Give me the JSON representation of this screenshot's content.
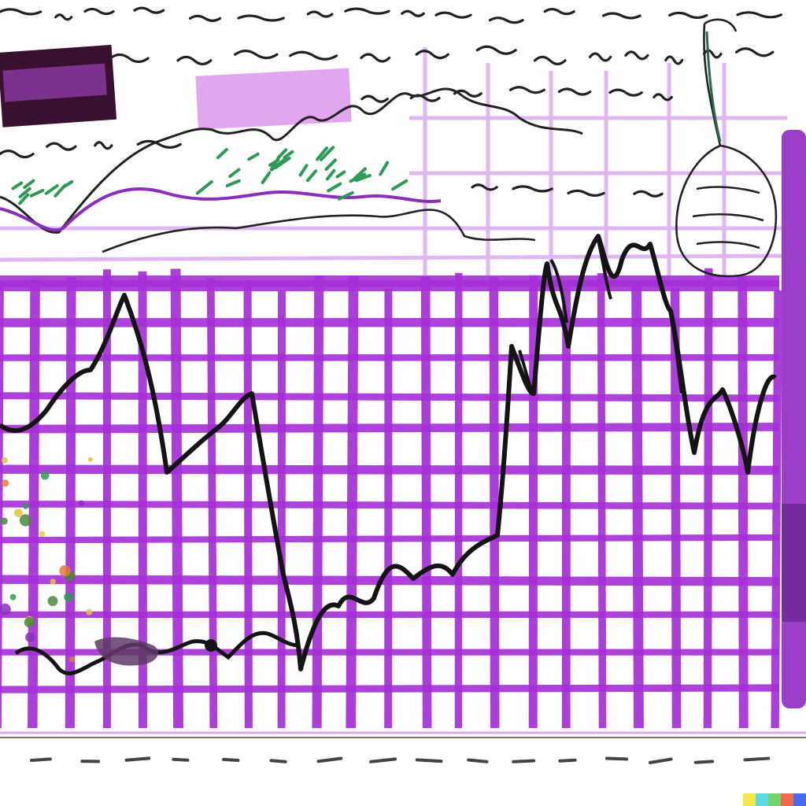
{
  "artwork": {
    "kind": "abstract painted line chart with purple grid and scribbled handwriting (no legible text)",
    "colors": {
      "background": "#ffffff",
      "grid": "#a52fd6",
      "grid_light": "#d9a6ef",
      "ink": "#111111",
      "purple_block": "#9b3fc9",
      "pink_block": "#e2a6ee",
      "dark_block": "#3a1030",
      "green_accent": "#2f9a58",
      "yellow_accent": "#e4c43a"
    },
    "palette_swatches": [
      "#f5e94a",
      "#5fd9e8",
      "#6fd46f",
      "#f06a4a",
      "#4a6af0"
    ]
  }
}
